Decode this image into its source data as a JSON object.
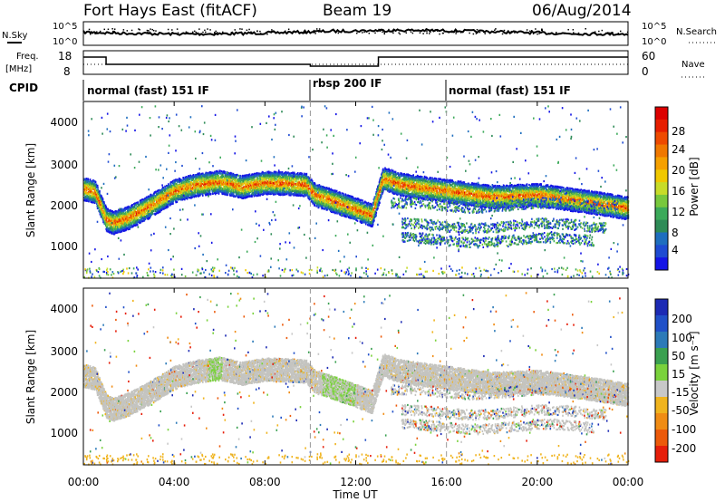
{
  "header": {
    "station": "Fort Hays East (fitACF)",
    "beam": "Beam 19",
    "date": "06/Aug/2014"
  },
  "noise_panel": {
    "left_label": "N.Sky",
    "right_label": "N.Search",
    "y_ticks": [
      "10^5",
      "10^0"
    ]
  },
  "freq_panel": {
    "left_label_1": "Freq.",
    "left_label_2": "[MHz]",
    "right_label": "Nave",
    "left_ticks": [
      "18",
      "8"
    ],
    "right_ticks": [
      "60",
      "0"
    ]
  },
  "cpid_panel": {
    "label": "CPID",
    "segments": [
      {
        "name": "normal (fast) 151 IF",
        "start_hour": 0.0,
        "end_hour": 10.0
      },
      {
        "name": "rbsp 200 IF",
        "start_hour": 10.0,
        "end_hour": 16.0
      },
      {
        "name": "normal (fast) 151 IF",
        "start_hour": 16.0,
        "end_hour": 24.0
      }
    ]
  },
  "x_axis": {
    "label": "Time UT",
    "tick_labels": [
      "00:00",
      "04:00",
      "08:00",
      "12:00",
      "16:00",
      "20:00",
      "00:00"
    ],
    "range_hours": [
      0,
      24
    ]
  },
  "power_panel": {
    "ylabel": "Slant Range [km]",
    "y_ticks": [
      "4000",
      "3000",
      "2000",
      "1000"
    ],
    "colorbar_label": "Power [dB]",
    "colorbar_ticks": [
      "28",
      "24",
      "20",
      "16",
      "12",
      "8",
      "4"
    ]
  },
  "velocity_panel": {
    "ylabel": "Slant Range [km]",
    "y_ticks": [
      "4000",
      "3000",
      "2000",
      "1000"
    ],
    "colorbar_label": "Velocity [m s⁻¹]",
    "colorbar_ticks": [
      "200",
      "100",
      "50",
      "15",
      "-15",
      "-50",
      "-100",
      "-200"
    ]
  },
  "colors": {
    "power_scale": [
      "#1414e6",
      "#1e4bd2",
      "#1e6ebe",
      "#2e8b57",
      "#3caa5a",
      "#78c83c",
      "#c8dc28",
      "#f0c800",
      "#f5a000",
      "#f07800",
      "#ee4a00",
      "#e61e00",
      "#dc0000"
    ],
    "velocity_scale": [
      "#1c2ab4",
      "#2050c8",
      "#2c7ab8",
      "#3aa050",
      "#7ad23c",
      "#c8c8c8",
      "#f0b41e",
      "#f08c14",
      "#ec5a0a",
      "#e61e0a"
    ],
    "ground_scatter": "#c4c4c0"
  },
  "chart_data": {
    "type": "heatmap",
    "title": "Fort Hays East (fitACF)",
    "xlabel": "Time UT",
    "ylabel": "Slant Range [km]",
    "xlim": [
      0,
      24
    ],
    "ylim": [
      180,
      4500
    ],
    "band_center_km": [
      [
        0.0,
        2350
      ],
      [
        0.5,
        2280
      ],
      [
        1.0,
        1600
      ],
      [
        1.3,
        1520
      ],
      [
        2.0,
        1650
      ],
      [
        3.0,
        1950
      ],
      [
        4.0,
        2300
      ],
      [
        5.0,
        2450
      ],
      [
        6.0,
        2520
      ],
      [
        7.0,
        2400
      ],
      [
        8.0,
        2500
      ],
      [
        9.0,
        2480
      ],
      [
        9.8,
        2450
      ],
      [
        10.2,
        2200
      ],
      [
        11.0,
        2050
      ],
      [
        12.0,
        1850
      ],
      [
        12.7,
        1700
      ],
      [
        13.2,
        2600
      ],
      [
        14.0,
        2450
      ],
      [
        16.0,
        2300
      ],
      [
        18.0,
        2150
      ],
      [
        20.0,
        2200
      ],
      [
        22.0,
        2050
      ],
      [
        24.0,
        1880
      ]
    ],
    "secondary_bands": [
      {
        "start_hour": 13.5,
        "end_hour": 23.5,
        "center_km": 1950
      },
      {
        "start_hour": 14.0,
        "end_hour": 23.0,
        "center_km": 1450
      },
      {
        "start_hour": 14.0,
        "end_hour": 22.5,
        "center_km": 1100
      }
    ],
    "power_range_db": [
      0,
      30
    ],
    "velocity_range_ms": [
      -200,
      200
    ]
  }
}
